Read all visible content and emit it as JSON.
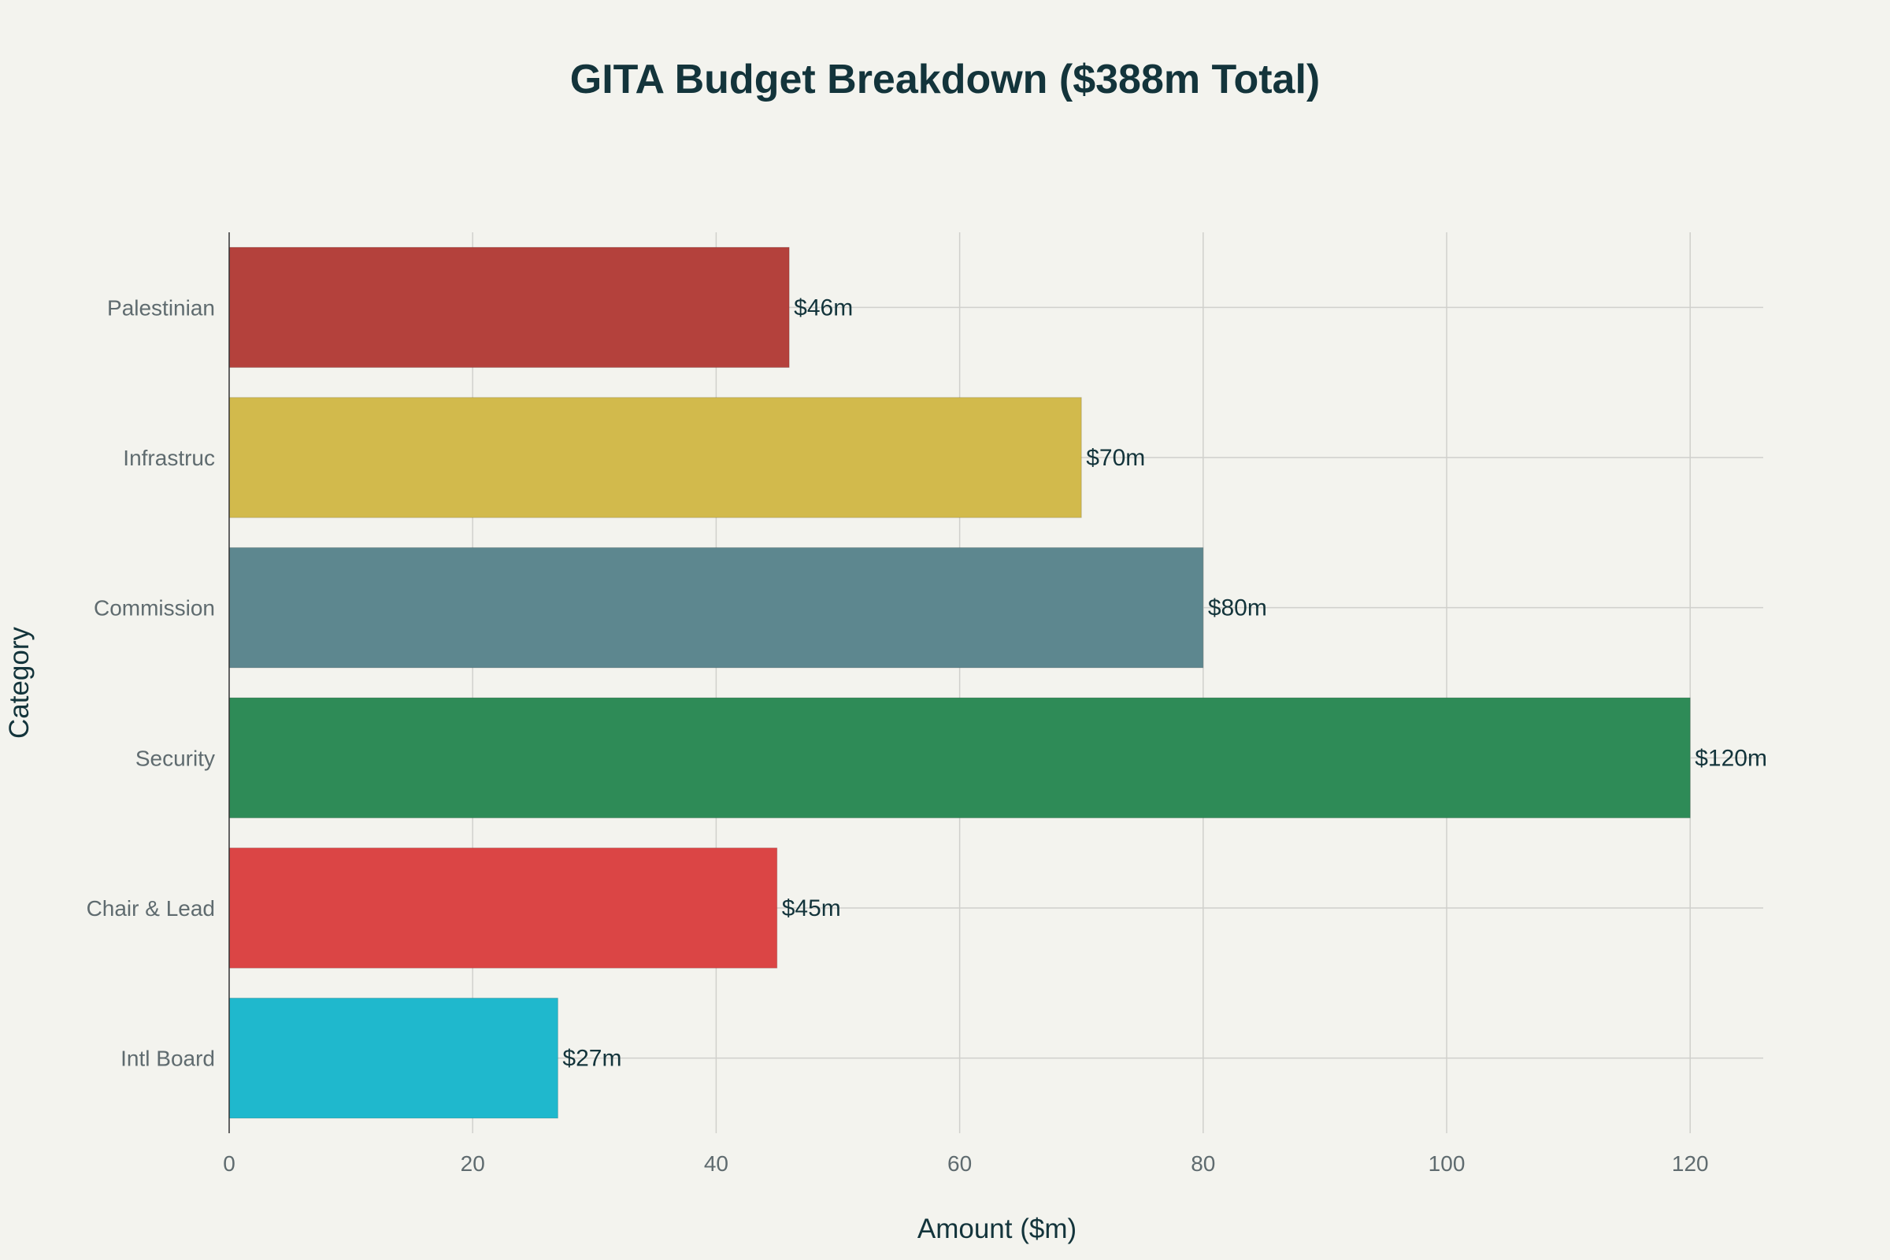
{
  "chart_data": {
    "type": "bar",
    "orientation": "horizontal",
    "title": "GITA Budget Breakdown ($388m Total)",
    "xlabel": "Amount ($m)",
    "ylabel": "Category",
    "categories": [
      "Intl Board",
      "Chair & Lead",
      "Security",
      "Commission",
      "Infrastruc",
      "Palestinian"
    ],
    "values": [
      27,
      45,
      120,
      80,
      70,
      46
    ],
    "data_labels": [
      "$27m",
      "$45m",
      "$120m",
      "$80m",
      "$70m",
      "$46m"
    ],
    "colors": [
      "#1fb8cd",
      "#db4545",
      "#2e8b57",
      "#5d878f",
      "#d2ba4c",
      "#b4413c"
    ],
    "xlim": [
      0,
      126
    ],
    "xticks": [
      0,
      20,
      40,
      60,
      80,
      100,
      120
    ],
    "xtick_labels": [
      "0",
      "20",
      "40",
      "60",
      "80",
      "100",
      "120"
    ],
    "grid": true,
    "legend": "none"
  }
}
